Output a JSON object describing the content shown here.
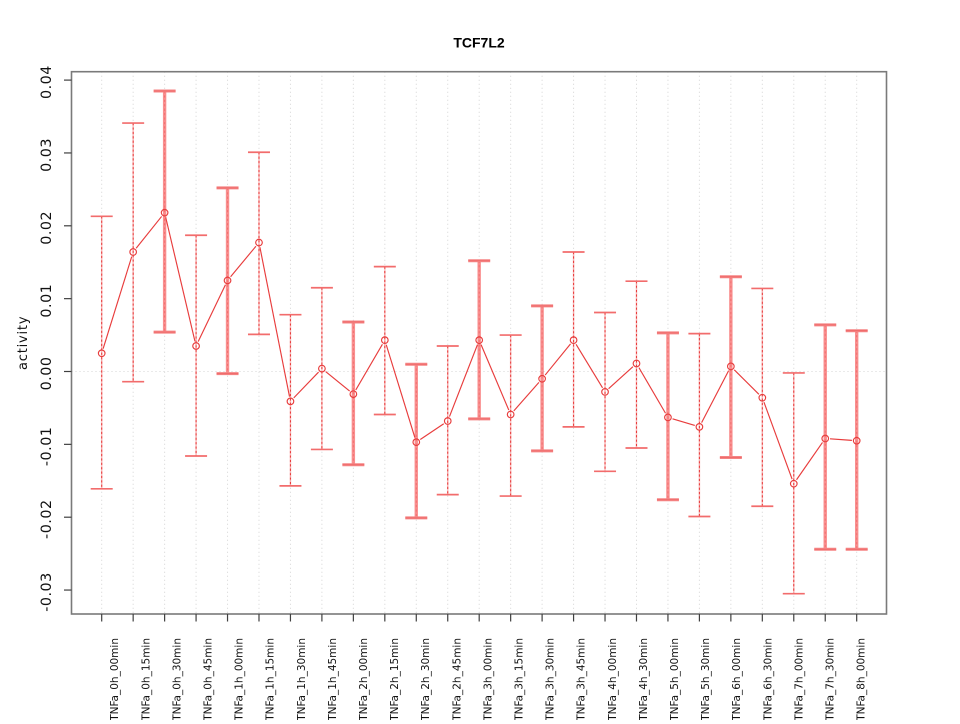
{
  "title": "TCF7L2",
  "ylabel": "activity",
  "chart_data": {
    "type": "line",
    "title": "TCF7L2",
    "xlabel": "",
    "ylabel": "activity",
    "ylim": [
      -0.033,
      0.0415
    ],
    "y_ticks": [
      0.04,
      0.03,
      0.02,
      0.01,
      0.0,
      -0.01,
      -0.02,
      -0.03
    ],
    "y_tick_labels": [
      "0.04",
      "0.03",
      "0.02",
      "0.01",
      "0.00",
      "-0.01",
      "-0.02",
      "-0.03"
    ],
    "grid": "vertical dotted gridline per category; dotted horizontal line at y=0",
    "legend": "none",
    "point_marker": "open-circle",
    "line_color": "#e83c3c",
    "errorbar_color": "#f58080",
    "frame_color": "#7a7a7a",
    "grid_color": "#d4d4d4",
    "categories": [
      "TNFa_0h_00min",
      "TNFa_0h_15min",
      "TNFa_0h_30min",
      "TNFa_0h_45min",
      "TNFa_1h_00min",
      "TNFa_1h_15min",
      "TNFa_1h_30min",
      "TNFa_1h_45min",
      "TNFa_2h_00min",
      "TNFa_2h_15min",
      "TNFa_2h_30min",
      "TNFa_2h_45min",
      "TNFa_3h_00min",
      "TNFa_3h_15min",
      "TNFa_3h_30min",
      "TNFa_3h_45min",
      "TNFa_4h_00min",
      "TNFa_4h_30min",
      "TNFa_5h_00min",
      "TNFa_5h_30min",
      "TNFa_6h_00min",
      "TNFa_6h_30min",
      "TNFa_7h_00min",
      "TNFa_7h_30min",
      "TNFa_8h_00min"
    ],
    "series": [
      {
        "name": "activity",
        "values": [
          0.0025,
          0.0164,
          0.0218,
          0.0035,
          0.0125,
          0.0177,
          -0.0041,
          0.0004,
          -0.0031,
          0.0043,
          -0.0097,
          -0.0068,
          0.0043,
          -0.0059,
          -0.001,
          0.0043,
          -0.0028,
          0.0011,
          -0.0063,
          -0.0076,
          0.0007,
          -0.0036,
          -0.0154,
          -0.0092,
          -0.0095
        ],
        "ci_high": [
          0.0213,
          0.0341,
          0.0385,
          0.0187,
          0.0252,
          0.0301,
          0.0078,
          0.0115,
          0.0068,
          0.0144,
          0.001,
          0.0035,
          0.0152,
          0.005,
          0.009,
          0.0164,
          0.0081,
          0.0124,
          0.0053,
          0.0052,
          0.013,
          0.0114,
          -0.0002,
          0.0064,
          0.0056
        ],
        "ci_low": [
          -0.0161,
          -0.0014,
          0.0054,
          -0.0116,
          -0.0003,
          0.0051,
          -0.0157,
          -0.0107,
          -0.0128,
          -0.0059,
          -0.0201,
          -0.0169,
          -0.0065,
          -0.0171,
          -0.0109,
          -0.0076,
          -0.0137,
          -0.0105,
          -0.0176,
          -0.0199,
          -0.0118,
          -0.0185,
          -0.0305,
          -0.0244,
          -0.0244
        ],
        "bar_thick": [
          false,
          false,
          true,
          false,
          true,
          false,
          false,
          false,
          true,
          false,
          true,
          false,
          true,
          false,
          true,
          false,
          false,
          false,
          true,
          false,
          true,
          false,
          false,
          true,
          true
        ]
      }
    ]
  }
}
